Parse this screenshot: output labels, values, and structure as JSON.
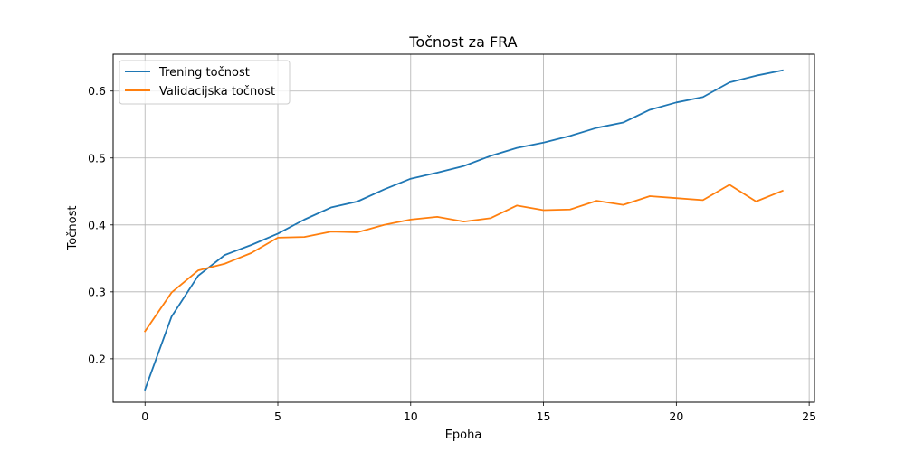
{
  "chart_data": {
    "type": "line",
    "title": "Točnost za FRA",
    "xlabel": "Epoha",
    "ylabel": "Točnost",
    "xlim": [
      -1.2,
      25.2
    ],
    "ylim": [
      0.135,
      0.655
    ],
    "xticks": [
      0,
      5,
      10,
      15,
      20,
      25
    ],
    "yticks": [
      0.2,
      0.3,
      0.4,
      0.5,
      0.6
    ],
    "grid": true,
    "legend_position": "top-left",
    "x": [
      0,
      1,
      2,
      3,
      4,
      5,
      6,
      7,
      8,
      9,
      10,
      11,
      12,
      13,
      14,
      15,
      16,
      17,
      18,
      19,
      20,
      21,
      22,
      23,
      24
    ],
    "series": [
      {
        "name": "Trening točnost",
        "color": "#1f77b4",
        "values": [
          0.154,
          0.263,
          0.324,
          0.355,
          0.37,
          0.387,
          0.408,
          0.426,
          0.435,
          0.453,
          0.469,
          0.478,
          0.488,
          0.503,
          0.515,
          0.523,
          0.533,
          0.545,
          0.553,
          0.572,
          0.583,
          0.591,
          0.613,
          0.623,
          0.631
        ]
      },
      {
        "name": "Validacijska točnost",
        "color": "#ff7f0e",
        "values": [
          0.241,
          0.299,
          0.332,
          0.342,
          0.358,
          0.381,
          0.382,
          0.39,
          0.389,
          0.4,
          0.408,
          0.412,
          0.405,
          0.41,
          0.429,
          0.422,
          0.423,
          0.436,
          0.43,
          0.443,
          0.44,
          0.437,
          0.46,
          0.435,
          0.451
        ]
      }
    ]
  }
}
